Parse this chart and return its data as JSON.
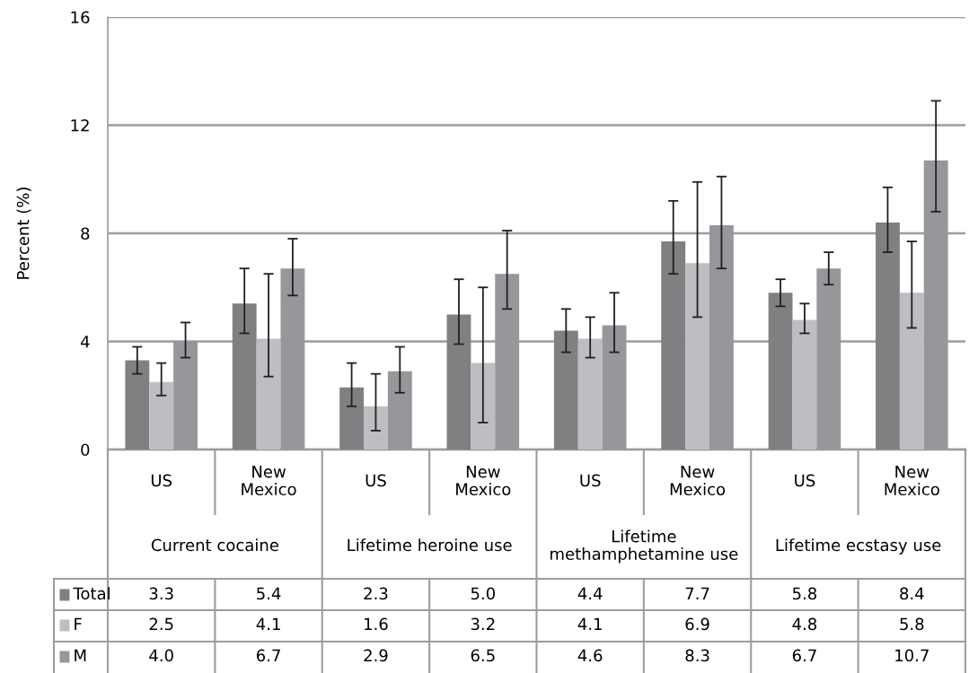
{
  "chart_data": {
    "type": "bar",
    "ylabel": "Percent (%)",
    "categories": [
      "US",
      "New\nMexico",
      "US",
      "New\nMexico",
      "US",
      "New\nMexico",
      "US",
      "New\nMexico"
    ],
    "annotations": [
      "Current cocaine",
      "Lifetime heroine use",
      "Lifetime\nmethamphetamine use",
      "Lifetime ecstasy use"
    ],
    "series": [
      {
        "name": "Total",
        "color": "#808083",
        "values": [
          3.3,
          5.4,
          2.3,
          5.0,
          4.4,
          7.7,
          5.8,
          8.4
        ],
        "errors": [
          [
            2.8,
            3.8
          ],
          [
            4.3,
            6.7
          ],
          [
            1.6,
            3.2
          ],
          [
            3.9,
            6.3
          ],
          [
            3.6,
            5.2
          ],
          [
            6.5,
            9.2
          ],
          [
            5.3,
            6.3
          ],
          [
            7.3,
            9.7
          ]
        ],
        "value_labels": [
          "3.3",
          "5.4",
          "2.3",
          "5.0",
          "4.4",
          "7.7",
          "5.8",
          "8.4"
        ]
      },
      {
        "name": "F",
        "color": "#bdbec2",
        "values": [
          2.5,
          4.1,
          1.6,
          3.2,
          4.1,
          6.9,
          4.8,
          5.8
        ],
        "errors": [
          [
            2.0,
            3.2
          ],
          [
            2.7,
            6.5
          ],
          [
            0.7,
            2.8
          ],
          [
            1.0,
            6.0
          ],
          [
            3.4,
            4.9
          ],
          [
            4.9,
            9.9
          ],
          [
            4.3,
            5.4
          ],
          [
            4.5,
            7.7
          ]
        ],
        "value_labels": [
          "2.5",
          "4.1",
          "1.6",
          "3.2",
          "4.1",
          "6.9",
          "4.8",
          "5.8"
        ]
      },
      {
        "name": "M",
        "color": "#96979a",
        "values": [
          4.0,
          6.7,
          2.9,
          6.5,
          4.6,
          8.3,
          6.7,
          10.7
        ],
        "errors": [
          [
            3.4,
            4.7
          ],
          [
            5.7,
            7.8
          ],
          [
            2.1,
            3.8
          ],
          [
            5.2,
            8.1
          ],
          [
            3.6,
            5.8
          ],
          [
            6.7,
            10.1
          ],
          [
            6.1,
            7.3
          ],
          [
            8.8,
            12.9
          ]
        ],
        "value_labels": [
          "4.0",
          "6.7",
          "2.9",
          "6.5",
          "4.6",
          "8.3",
          "6.7",
          "10.7"
        ]
      }
    ],
    "ylim": [
      0,
      16
    ],
    "yticks": [
      0,
      4,
      8,
      12,
      16
    ],
    "grid": "y",
    "legend": "bottom left"
  }
}
